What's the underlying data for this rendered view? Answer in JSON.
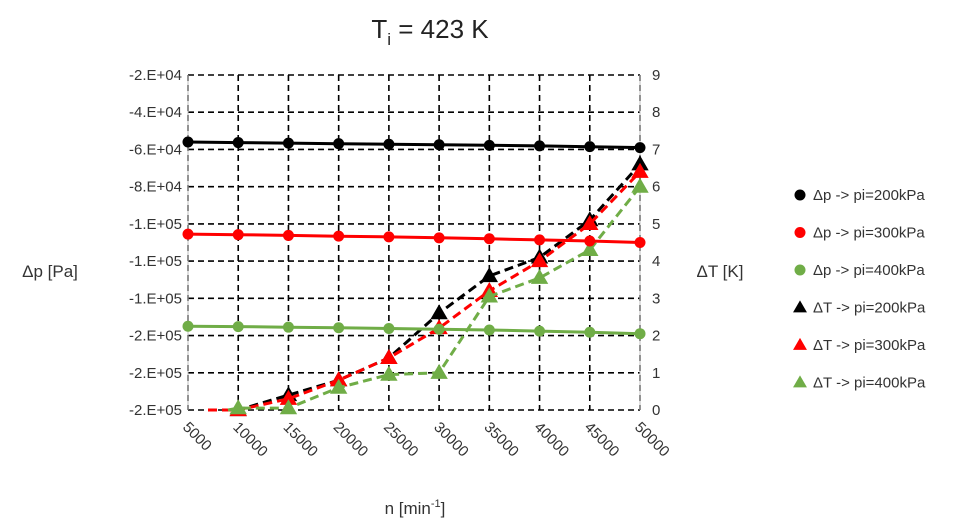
{
  "chart_data": {
    "type": "line",
    "title": {
      "main": "T",
      "sub": "i",
      "rest": " = 423 K"
    },
    "xlabel": {
      "main": "n [min",
      "sup": "-1",
      "rest": "]"
    },
    "ylabel_left": "Δp [Pa]",
    "ylabel_right": "ΔT [K]",
    "x_tick_labels": [
      "5000",
      "10000",
      "15000",
      "20000",
      "25000",
      "30000",
      "35000",
      "40000",
      "45000",
      "50000"
    ],
    "x_positions": [
      1,
      2,
      3,
      4,
      5,
      6,
      7,
      8,
      9,
      10
    ],
    "xlim": [
      1,
      10
    ],
    "y_left_tick_labels": [
      "-2.E+04",
      "-4.E+04",
      "-6.E+04",
      "-8.E+04",
      "-1.E+05",
      "-1.E+05",
      "-1.E+05",
      "-2.E+05",
      "-2.E+05",
      "-2.E+05"
    ],
    "y_left_tick_values": [
      -20000,
      -40000,
      -60000,
      -80000,
      -100000,
      -120000,
      -140000,
      -160000,
      -180000,
      -200000
    ],
    "y_left_range": [
      -200000,
      -20000
    ],
    "y_right_tick_labels": [
      "0",
      "1",
      "2",
      "3",
      "4",
      "5",
      "6",
      "7",
      "8",
      "9"
    ],
    "y_right_range": [
      0,
      9
    ],
    "grid": true,
    "legend_position": "right",
    "series": [
      {
        "name": "Δp -> pi=200kPa",
        "axis": "left",
        "marker": "circle",
        "color": "#000000",
        "line": "solid",
        "x": [
          1,
          2,
          3,
          4,
          5,
          6,
          7,
          8,
          9,
          10
        ],
        "values": [
          -56000,
          -56300,
          -56600,
          -56900,
          -57200,
          -57500,
          -57800,
          -58100,
          -58500,
          -59000
        ]
      },
      {
        "name": "Δp -> pi=300kPa",
        "axis": "left",
        "marker": "circle",
        "color": "#ff0000",
        "line": "solid",
        "x": [
          1,
          2,
          3,
          4,
          5,
          6,
          7,
          8,
          9,
          10
        ],
        "values": [
          -105500,
          -105800,
          -106200,
          -106600,
          -107000,
          -107500,
          -108000,
          -108600,
          -109200,
          -110000
        ]
      },
      {
        "name": "Δp -> pi=400kPa",
        "axis": "left",
        "marker": "circle",
        "color": "#70ad47",
        "line": "solid",
        "x": [
          1,
          2,
          3,
          4,
          5,
          6,
          7,
          8,
          9,
          10
        ],
        "values": [
          -155000,
          -155200,
          -155500,
          -155800,
          -156200,
          -156600,
          -157000,
          -157600,
          -158200,
          -159000
        ]
      },
      {
        "name": "ΔT -> pi=200kPa",
        "axis": "right",
        "marker": "triangle",
        "color": "#000000",
        "line": "dashed",
        "x": [
          2,
          3,
          4,
          5,
          6,
          7,
          8,
          9,
          10
        ],
        "values": [
          0,
          0.4,
          0.8,
          1.4,
          2.6,
          3.6,
          4.1,
          5.1,
          6.6
        ]
      },
      {
        "name": "ΔT -> pi=300kPa",
        "axis": "right",
        "marker": "triangle",
        "color": "#ff0000",
        "line": "dashed",
        "x": [
          2,
          3,
          4,
          5,
          6,
          7,
          8,
          9,
          10
        ],
        "values": [
          0,
          0.3,
          0.8,
          1.4,
          2.2,
          3.2,
          4.0,
          5.0,
          6.4
        ]
      },
      {
        "name": "ΔT -> pi=400kPa",
        "axis": "right",
        "marker": "triangle",
        "color": "#70ad47",
        "line": "dashed",
        "x": [
          2,
          3,
          4,
          5,
          6,
          7,
          8,
          9,
          10
        ],
        "values": [
          0.05,
          0.05,
          0.6,
          0.95,
          1.0,
          3.05,
          3.55,
          4.3,
          6.0
        ]
      }
    ]
  }
}
